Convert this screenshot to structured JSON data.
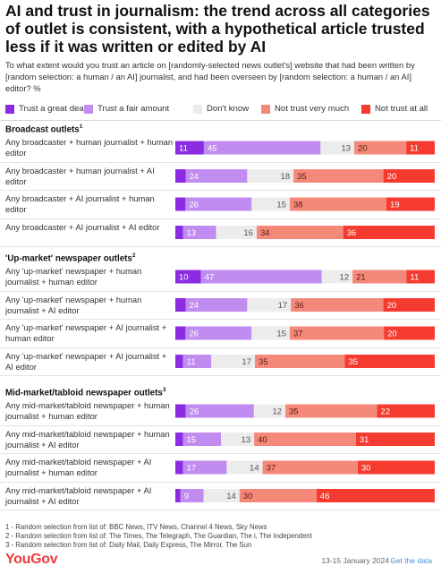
{
  "title": "AI and trust in journalism: the trend across all categories of outlet is consistent, with a hypothetical article trusted less if it was written or edited by AI",
  "subtitle": "To what extent would you trust an article on [randomly-selected news outlet's] website that had been written by [random selection: a human / an AI] journalist, and had been overseen by [random selection: a human / an AI] editor? %",
  "colors": {
    "trust_great": "#8b2be2",
    "trust_fair": "#c18cf0",
    "dont_know": "#ececec",
    "not_very": "#f4897a",
    "not_at_all": "#f53b2f"
  },
  "footnotes": [
    "1 - Random selection from list of: BBC News, ITV News, Channel 4 News, Sky News",
    "2 - Random selection from list of: The Times, The Telegraph, The Guardian, The i, The Independent",
    "3 - Random selection from list of: Daily Mail, Daily Express, The Mirror, The Sun"
  ],
  "footer": {
    "logo": "YouGov",
    "date": "13-15 January 2024",
    "dot": "·",
    "get_data": "Get the data"
  },
  "chart_data": {
    "type": "bar",
    "orientation": "horizontal",
    "stacked": true,
    "legend_placement": "top",
    "series": [
      {
        "name": "Trust a great deal",
        "color_key": "trust_great"
      },
      {
        "name": "Trust a fair amount",
        "color_key": "trust_fair"
      },
      {
        "name": "Don't know",
        "color_key": "dont_know"
      },
      {
        "name": "Not trust very much",
        "color_key": "not_very"
      },
      {
        "name": "Not trust at all",
        "color_key": "not_at_all"
      }
    ],
    "groups": [
      {
        "title": "Broadcast outlets",
        "footnote_mark": "1",
        "rows": [
          {
            "label": "Any broadcaster + human journalist + human editor",
            "values": [
              11,
              45,
              13,
              20,
              11
            ]
          },
          {
            "label": "Any broadcaster + human journalist + AI editor",
            "values": [
              4,
              24,
              18,
              35,
              20
            ]
          },
          {
            "label": "Any broadcaster + AI journalist + human editor",
            "values": [
              4,
              26,
              15,
              38,
              19
            ]
          },
          {
            "label": "Any broadcaster + AI journalist + AI editor",
            "values": [
              3,
              13,
              16,
              34,
              36
            ]
          }
        ]
      },
      {
        "title": "'Up-market' newspaper outlets",
        "footnote_mark": "2",
        "rows": [
          {
            "label": "Any 'up-market' newspaper + human journalist + human editor",
            "values": [
              10,
              47,
              12,
              21,
              11
            ]
          },
          {
            "label": "Any 'up-market' newspaper + human journalist + AI editor",
            "values": [
              4,
              24,
              17,
              36,
              20
            ]
          },
          {
            "label": "Any 'up-market' newspaper + AI journalist + human editor",
            "values": [
              4,
              26,
              15,
              37,
              20
            ]
          },
          {
            "label": "Any 'up-market' newspaper + AI journalist + AI editor",
            "values": [
              3,
              11,
              17,
              35,
              35
            ]
          }
        ]
      },
      {
        "title": "Mid-market/tabloid newspaper outlets",
        "footnote_mark": "3",
        "rows": [
          {
            "label": "Any mid-market/tabloid newspaper + human journalist + human editor",
            "values": [
              4,
              26,
              12,
              35,
              22
            ]
          },
          {
            "label": "Any mid-market/tabloid newspaper + human journalist + AI editor",
            "values": [
              3,
              15,
              13,
              40,
              31
            ]
          },
          {
            "label": "Any mid-market/tabloid newspaper + AI journalist + human editor",
            "values": [
              3,
              17,
              14,
              37,
              30
            ]
          },
          {
            "label": "Any mid-market/tabloid newspaper + AI journalist + AI editor",
            "values": [
              2,
              9,
              14,
              30,
              46
            ]
          }
        ]
      }
    ]
  }
}
